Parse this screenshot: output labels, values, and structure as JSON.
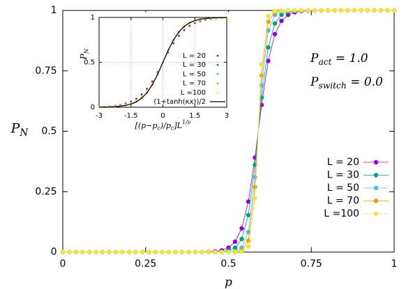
{
  "chart_data": [
    {
      "type": "line",
      "xlabel": "p",
      "ylabel_parts": [
        {
          "text": "P"
        },
        {
          "text": "N",
          "shift": "sub"
        }
      ],
      "annotations": [
        {
          "parts": [
            {
              "text": "P"
            },
            {
              "text": "act",
              "shift": "sub"
            },
            {
              "text": " = 1.0"
            }
          ]
        },
        {
          "parts": [
            {
              "text": "P"
            },
            {
              "text": "switch",
              "shift": "sub"
            },
            {
              "text": " = 0.0"
            }
          ]
        }
      ],
      "xlim": [
        0,
        1
      ],
      "ylim": [
        0,
        1
      ],
      "xticks": [
        0,
        0.25,
        0.5,
        0.75,
        1
      ],
      "yticks": [
        0,
        0.25,
        0.5,
        0.75,
        1
      ],
      "grid": false,
      "legend": "center right",
      "x": [
        0,
        0.02,
        0.04,
        0.06,
        0.08,
        0.1,
        0.12,
        0.14,
        0.16,
        0.18,
        0.2,
        0.22,
        0.24,
        0.26,
        0.28,
        0.3,
        0.32,
        0.34,
        0.36,
        0.38,
        0.4,
        0.42,
        0.44,
        0.46,
        0.48,
        0.5,
        0.52,
        0.54,
        0.56,
        0.58,
        0.6,
        0.62,
        0.64,
        0.66,
        0.68,
        0.7,
        0.72,
        0.74,
        0.76,
        0.78,
        0.8,
        0.82,
        0.84,
        0.86,
        0.88,
        0.9,
        0.92,
        0.94,
        0.96,
        0.98,
        1
      ],
      "series": [
        {
          "name": "L = 20",
          "color": "#9400d3",
          "style": "linespoints",
          "values": [
            0,
            0,
            0,
            0,
            0,
            0,
            0,
            0,
            0,
            0,
            0,
            0,
            0,
            0,
            0,
            0,
            0,
            0,
            0,
            0,
            0.0002,
            0.0005,
            0.0013,
            0.003,
            0.0075,
            0.018,
            0.043,
            0.098,
            0.209,
            0.391,
            0.609,
            0.791,
            0.902,
            0.957,
            0.982,
            0.9925,
            0.997,
            0.9987,
            0.9995,
            0.9998,
            1,
            1,
            1,
            1,
            1,
            1,
            1,
            1,
            1,
            1,
            1
          ]
        },
        {
          "name": "L = 30",
          "color": "#009e73",
          "style": "linespoints",
          "values": [
            0,
            0,
            0,
            0,
            0,
            0,
            0,
            0,
            0,
            0,
            0,
            0,
            0,
            0,
            0,
            0,
            0,
            0,
            0,
            0,
            0,
            0,
            0,
            0,
            0.002,
            0.006,
            0.018,
            0.054,
            0.153,
            0.361,
            0.639,
            0.847,
            0.946,
            0.982,
            0.994,
            0.998,
            1,
            1,
            1,
            1,
            1,
            1,
            1,
            1,
            1,
            1,
            1,
            1,
            1,
            1,
            1
          ]
        },
        {
          "name": "L = 50",
          "color": "#56b4e9",
          "style": "linespoints",
          "values": [
            0,
            0,
            0,
            0,
            0,
            0,
            0,
            0,
            0,
            0,
            0,
            0,
            0,
            0,
            0,
            0,
            0,
            0,
            0,
            0,
            0,
            0,
            0,
            0,
            0,
            0,
            0.004,
            0.018,
            0.083,
            0.31,
            0.69,
            0.917,
            0.982,
            0.996,
            1,
            1,
            1,
            1,
            1,
            1,
            1,
            1,
            1,
            1,
            1,
            1,
            1,
            1,
            1,
            1,
            1
          ]
        },
        {
          "name": "L = 70",
          "color": "#e69f00",
          "style": "linespoints",
          "values": [
            0,
            0,
            0,
            0,
            0,
            0,
            0,
            0,
            0,
            0,
            0,
            0,
            0,
            0,
            0,
            0,
            0,
            0,
            0,
            0,
            0,
            0,
            0,
            0,
            0,
            0,
            0,
            0.007,
            0.047,
            0.269,
            0.731,
            0.953,
            0.993,
            0.999,
            1,
            1,
            1,
            1,
            1,
            1,
            1,
            1,
            1,
            1,
            1,
            1,
            1,
            1,
            1,
            1,
            1
          ]
        },
        {
          "name": "L =100",
          "color": "#f0e442",
          "style": "linespoints",
          "values": [
            0,
            0,
            0,
            0,
            0,
            0,
            0,
            0,
            0,
            0,
            0,
            0,
            0,
            0,
            0,
            0,
            0,
            0,
            0,
            0,
            0,
            0,
            0,
            0,
            0,
            0,
            0,
            0.002,
            0.023,
            0.223,
            0.777,
            0.977,
            0.998,
            1,
            1,
            1,
            1,
            1,
            1,
            1,
            1,
            1,
            1,
            1,
            1,
            1,
            1,
            1,
            1,
            1,
            1
          ]
        }
      ]
    },
    {
      "type": "line",
      "xlabel_parts": [
        {
          "text": "[(p−p"
        },
        {
          "text": "c",
          "shift": "sub"
        },
        {
          "text": ")/p"
        },
        {
          "text": "c",
          "shift": "sub"
        },
        {
          "text": "]L"
        },
        {
          "text": "1/ν",
          "shift": "super"
        }
      ],
      "ylabel_parts": [
        {
          "text": "P"
        },
        {
          "text": "N",
          "shift": "sub"
        }
      ],
      "xlim": [
        -3,
        3
      ],
      "ylim": [
        0,
        1
      ],
      "xticks": [
        -3,
        -1.5,
        0,
        1.5,
        3
      ],
      "yticks": [
        0,
        0.5,
        1
      ],
      "grid": true,
      "legend": "bottom right",
      "x": [
        -3,
        -2.75,
        -2.5,
        -2.25,
        -2,
        -1.75,
        -1.5,
        -1.25,
        -1,
        -0.75,
        -0.5,
        -0.25,
        0,
        0.25,
        0.5,
        0.75,
        1,
        1.25,
        1.5,
        1.75,
        2,
        2.25,
        2.5,
        2.75,
        3
      ],
      "series": [
        {
          "name": "L = 20",
          "color": "#9400d3",
          "style": "points",
          "values": [
            0.0045,
            0.007,
            0.011,
            0.017,
            0.027,
            0.041,
            0.063,
            0.095,
            0.142,
            0.206,
            0.289,
            0.389,
            0.5,
            0.611,
            0.711,
            0.794,
            0.858,
            0.905,
            0.937,
            0.959,
            0.973,
            0.983,
            0.989,
            0.993,
            0.9955
          ]
        },
        {
          "name": "L = 30",
          "color": "#009e73",
          "style": "points",
          "values": [
            0.0025,
            0.004,
            0.0067,
            0.011,
            0.018,
            0.029,
            0.047,
            0.076,
            0.119,
            0.182,
            0.269,
            0.378,
            0.5,
            0.622,
            0.731,
            0.818,
            0.881,
            0.924,
            0.953,
            0.971,
            0.982,
            0.989,
            0.9933,
            0.996,
            0.9975
          ]
        },
        {
          "name": "L = 50",
          "color": "#56b4e9",
          "style": "points",
          "values": [
            0.0014,
            0.0024,
            0.004,
            0.007,
            0.012,
            0.021,
            0.036,
            0.06,
            0.1,
            0.161,
            0.25,
            0.366,
            0.5,
            0.634,
            0.75,
            0.839,
            0.9,
            0.94,
            0.964,
            0.979,
            0.988,
            0.993,
            0.996,
            0.9976,
            0.9986
          ]
        },
        {
          "name": "L = 70",
          "color": "#e69f00",
          "style": "points",
          "values": [
            0.0014,
            0.0024,
            0.004,
            0.007,
            0.012,
            0.021,
            0.036,
            0.06,
            0.1,
            0.161,
            0.25,
            0.366,
            0.5,
            0.634,
            0.75,
            0.839,
            0.9,
            0.94,
            0.964,
            0.979,
            0.988,
            0.993,
            0.996,
            0.9976,
            0.9986
          ]
        },
        {
          "name": "L =100",
          "color": "#f0e442",
          "style": "points",
          "values": [
            0.0025,
            0.004,
            0.0067,
            0.011,
            0.018,
            0.029,
            0.047,
            0.076,
            0.119,
            0.182,
            0.269,
            0.378,
            0.5,
            0.622,
            0.731,
            0.818,
            0.881,
            0.924,
            0.953,
            0.971,
            0.982,
            0.989,
            0.9933,
            0.996,
            0.9975
          ]
        },
        {
          "name": "(1+tanh(κx))/2",
          "color": "#000000",
          "style": "line",
          "values": [
            0.0014,
            0.0024,
            0.004,
            0.007,
            0.012,
            0.021,
            0.036,
            0.06,
            0.1,
            0.161,
            0.25,
            0.366,
            0.5,
            0.634,
            0.75,
            0.839,
            0.9,
            0.94,
            0.964,
            0.979,
            0.988,
            0.993,
            0.996,
            0.9976,
            0.9986
          ]
        }
      ]
    }
  ]
}
